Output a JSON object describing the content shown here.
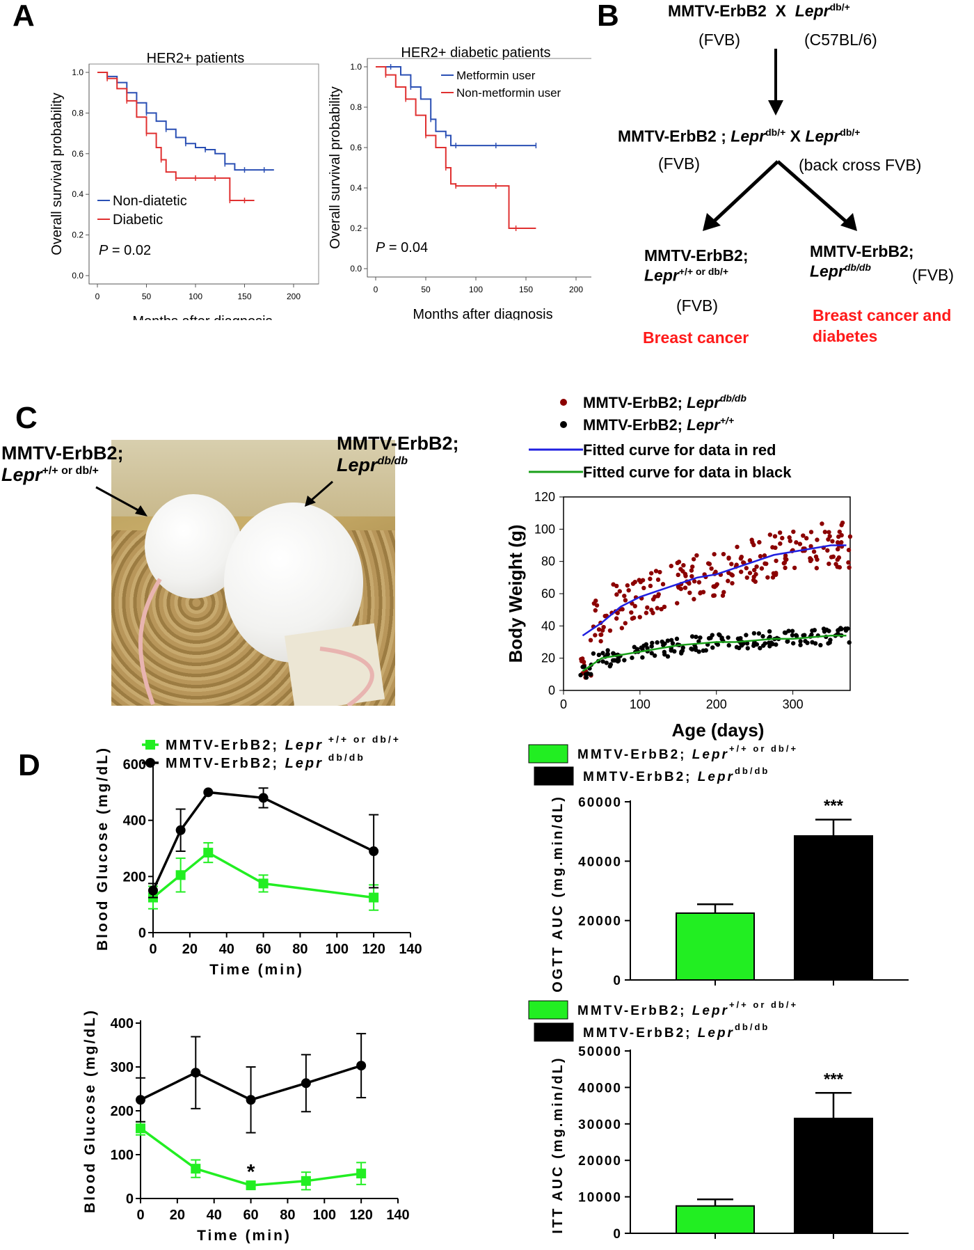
{
  "panels": {
    "a": "A",
    "b": "B",
    "c": "C",
    "d": "D"
  },
  "panelA": {
    "left": {
      "title": "HER2+ patients",
      "xlabel": "Months after diagnosis",
      "ylabel": "Overall survival probability",
      "xticks": [
        "0",
        "50",
        "100",
        "150",
        "200"
      ],
      "yticks": [
        "0.0",
        "0.2",
        "0.4",
        "0.6",
        "0.8",
        "1.0"
      ],
      "legend": [
        "Non-diatetic",
        "Diabetic"
      ],
      "pvalue_p": "P",
      "pvalue_rest": " = 0.02"
    },
    "right": {
      "title": "HER2+ diabetic patients",
      "xlabel": "Months after diagnosis",
      "ylabel": "Overall survival probability",
      "xticks": [
        "0",
        "50",
        "100",
        "150",
        "200"
      ],
      "yticks": [
        "0.0",
        "0.2",
        "0.4",
        "0.6",
        "0.8",
        "1.0"
      ],
      "legend": [
        "Metformin user",
        "Non-metformin user"
      ],
      "pvalue_p": "P",
      "pvalue_rest": " = 0.04"
    }
  },
  "panelB": {
    "cross1_a": "MMTV-ErbB2",
    "cross1_x": "X",
    "cross1_b": "Lepr",
    "cross1_b_sup": "db/+",
    "strain1": "(FVB)",
    "strain2": "(C57BL/6)",
    "cross2_a": "MMTV-ErbB2 ; ",
    "cross2_b": "Lepr",
    "cross2_b_sup": "db/+",
    "cross2_x": " X ",
    "cross2_c": "Lepr",
    "cross2_c_sup": "db/+",
    "strain3": "(FVB)",
    "strain4": "(back cross FVB)",
    "left_a": "MMTV-ErbB2;",
    "left_b": "Lepr",
    "left_b_sup": "+/+ or db/+",
    "left_strain": "(FVB)",
    "left_pheno": "Breast cancer",
    "right_a": "MMTV-ErbB2;",
    "right_b": "Lepr",
    "right_b_sup": "db/db",
    "right_strain": "(FVB)",
    "right_pheno1": "Breast cancer and",
    "right_pheno2": "diabetes"
  },
  "panelC": {
    "photo_left_a": "MMTV-ErbB2;",
    "photo_left_b": "Lepr",
    "photo_left_sup": "+/+ or db/+",
    "photo_right_a": "MMTV-ErbB2;",
    "photo_right_b": "Lepr",
    "photo_right_sup": "db/db",
    "legend": [
      {
        "prefix": "MMTV-ErbB2; ",
        "gene": "Lepr",
        "sup": "db/db",
        "color": "#8b0000"
      },
      {
        "prefix": "MMTV-ErbB2; ",
        "gene": "Lepr",
        "sup": "+/+",
        "color": "#000000"
      },
      {
        "label": "Fitted curve for data in red",
        "color": "#2020e0"
      },
      {
        "label": "Fitted curve for data in black",
        "color": "#1aa01a"
      }
    ],
    "xlabel": "Age (days)",
    "ylabel": "Body Weight (g)",
    "xticks": [
      "0",
      "100",
      "200",
      "300"
    ],
    "yticks": [
      "0",
      "20",
      "40",
      "60",
      "80",
      "100",
      "120"
    ]
  },
  "panelD": {
    "ogtt_line": {
      "legend": [
        {
          "prefix": "MMTV-ErbB2; ",
          "gene": "Lepr",
          "sup": " +/+ or db/+",
          "color": "#22ee22"
        },
        {
          "prefix": "MMTV-ErbB2; ",
          "gene": "Lepr",
          "sup": " db/db",
          "color": "#000000"
        }
      ],
      "xlabel": "Time (min)",
      "ylabel": "Blood Glucose (mg/dL)",
      "xticks": [
        "0",
        "20",
        "40",
        "60",
        "80",
        "100",
        "120",
        "140"
      ],
      "yticks": [
        "0",
        "200",
        "400",
        "600"
      ]
    },
    "itt_line": {
      "xlabel": "Time (min)",
      "ylabel": "Blood Glucose (mg/dL)",
      "xticks": [
        "0",
        "20",
        "40",
        "60",
        "80",
        "100",
        "120",
        "140"
      ],
      "yticks": [
        "0",
        "100",
        "200",
        "300",
        "400"
      ],
      "annotation": "*"
    },
    "ogtt_bar": {
      "legend": [
        {
          "prefix": "MMTV-ErbB2; ",
          "gene": "Lepr",
          "sup": "+/+ or db/+",
          "color": "#22ee22"
        },
        {
          "prefix": "MMTV-ErbB2; ",
          "gene": "Lepr",
          "sup": "db/db",
          "color": "#000000"
        }
      ],
      "ylabel": "OGTT AUC (mg.min/dL)",
      "yticks": [
        "0",
        "20000",
        "40000",
        "60000"
      ],
      "annotation": "***"
    },
    "itt_bar": {
      "legend": [
        {
          "prefix": "MMTV-ErbB2; ",
          "gene": "Lepr",
          "sup": "+/+ or db/+",
          "color": "#22ee22"
        },
        {
          "prefix": "MMTV-ErbB2; ",
          "gene": "Lepr",
          "sup": "db/db",
          "color": "#000000"
        }
      ],
      "ylabel": "ITT AUC (mg.min/dL)",
      "yticks": [
        "0",
        "10000",
        "20000",
        "30000",
        "40000",
        "50000"
      ],
      "annotation": "***"
    }
  },
  "chart_data": [
    {
      "type": "line",
      "id": "A-left",
      "step": true,
      "xlim": [
        0,
        200
      ],
      "ylim": [
        0,
        1.0
      ],
      "series": [
        {
          "name": "Non-diatetic",
          "color": "#2a4fb4",
          "x": [
            0,
            10,
            20,
            30,
            40,
            50,
            60,
            70,
            80,
            90,
            100,
            110,
            120,
            130,
            140,
            150,
            160,
            170,
            180
          ],
          "y": [
            1.0,
            0.98,
            0.95,
            0.9,
            0.85,
            0.8,
            0.76,
            0.72,
            0.68,
            0.65,
            0.63,
            0.62,
            0.6,
            0.55,
            0.52,
            0.52,
            0.52,
            0.52,
            0.52
          ]
        },
        {
          "name": "Diabetic",
          "color": "#e03030",
          "x": [
            0,
            10,
            20,
            30,
            40,
            50,
            60,
            65,
            70,
            80,
            90,
            100,
            110,
            120,
            130,
            135,
            140,
            150,
            160
          ],
          "y": [
            1.0,
            0.97,
            0.92,
            0.86,
            0.78,
            0.7,
            0.63,
            0.57,
            0.51,
            0.48,
            0.48,
            0.48,
            0.48,
            0.48,
            0.48,
            0.37,
            0.37,
            0.37,
            0.37
          ]
        }
      ]
    },
    {
      "type": "line",
      "id": "A-right",
      "step": true,
      "xlim": [
        0,
        200
      ],
      "ylim": [
        0,
        1.0
      ],
      "series": [
        {
          "name": "Metformin user",
          "color": "#2a4fb4",
          "x": [
            0,
            15,
            25,
            35,
            45,
            55,
            60,
            70,
            75,
            80,
            100,
            120,
            140,
            160
          ],
          "y": [
            1.0,
            1.0,
            0.96,
            0.9,
            0.84,
            0.74,
            0.68,
            0.66,
            0.61,
            0.61,
            0.61,
            0.61,
            0.61,
            0.61
          ]
        },
        {
          "name": "Non-metformin user",
          "color": "#e03030",
          "x": [
            0,
            10,
            20,
            30,
            40,
            50,
            60,
            70,
            75,
            80,
            100,
            120,
            133,
            140,
            160
          ],
          "y": [
            1.0,
            0.96,
            0.9,
            0.84,
            0.76,
            0.66,
            0.6,
            0.5,
            0.42,
            0.41,
            0.41,
            0.41,
            0.2,
            0.2,
            0.2
          ]
        }
      ]
    },
    {
      "type": "scatter",
      "id": "C",
      "xlim": [
        0,
        375
      ],
      "ylim": [
        0,
        120
      ],
      "series": [
        {
          "name": "MMTV-ErbB2; Lepr db/db",
          "color": "#8b0000",
          "x": [
            25,
            50,
            75,
            100,
            125,
            150,
            175,
            200,
            225,
            250,
            275,
            300,
            325,
            350,
            370
          ],
          "y": [
            18,
            42,
            52,
            58,
            62,
            66,
            70,
            72,
            76,
            80,
            84,
            86,
            88,
            90,
            90
          ]
        },
        {
          "name": "MMTV-ErbB2; Lepr +/+",
          "color": "#000000",
          "x": [
            25,
            50,
            75,
            100,
            125,
            150,
            175,
            200,
            225,
            250,
            275,
            300,
            325,
            350,
            370
          ],
          "y": [
            12,
            20,
            22,
            24,
            26,
            28,
            29,
            30,
            30,
            31,
            32,
            32,
            33,
            34,
            34
          ]
        }
      ],
      "fits": [
        {
          "label": "Fitted curve for data in red",
          "color": "#2020e0"
        },
        {
          "label": "Fitted curve for data in black",
          "color": "#1aa01a"
        }
      ]
    },
    {
      "type": "line",
      "id": "D-OGTT",
      "xlim": [
        0,
        140
      ],
      "ylim": [
        0,
        600
      ],
      "x": [
        0,
        15,
        30,
        60,
        120
      ],
      "series": [
        {
          "name": "Lepr +/+ or db/+",
          "color": "#22ee22",
          "values": [
            125,
            205,
            285,
            175,
            125
          ],
          "err": [
            40,
            60,
            35,
            30,
            45
          ]
        },
        {
          "name": "Lepr db/db",
          "color": "#000000",
          "values": [
            150,
            365,
            500,
            480,
            290
          ],
          "err": [
            25,
            75,
            0,
            35,
            130
          ]
        }
      ]
    },
    {
      "type": "line",
      "id": "D-ITT",
      "xlim": [
        0,
        140
      ],
      "ylim": [
        0,
        400
      ],
      "x": [
        0,
        30,
        60,
        90,
        120
      ],
      "series": [
        {
          "name": "Lepr +/+ or db/+",
          "color": "#22ee22",
          "values": [
            160,
            68,
            30,
            40,
            57
          ],
          "err": [
            15,
            20,
            8,
            20,
            25
          ]
        },
        {
          "name": "Lepr db/db",
          "color": "#000000",
          "values": [
            225,
            287,
            225,
            263,
            303
          ],
          "err": [
            50,
            82,
            75,
            65,
            73
          ]
        }
      ]
    },
    {
      "type": "bar",
      "id": "D-OGTT-AUC",
      "ylim": [
        0,
        60000
      ],
      "categories": [
        "Lepr +/+ or db/+",
        "Lepr db/db"
      ],
      "values": [
        22500,
        48500
      ],
      "err": [
        3000,
        5500
      ],
      "colors": [
        "#22ee22",
        "#000000"
      ]
    },
    {
      "type": "bar",
      "id": "D-ITT-AUC",
      "ylim": [
        0,
        50000
      ],
      "categories": [
        "Lepr +/+ or db/+",
        "Lepr db/db"
      ],
      "values": [
        7500,
        31500
      ],
      "err": [
        1800,
        7000
      ],
      "colors": [
        "#22ee22",
        "#000000"
      ]
    }
  ]
}
